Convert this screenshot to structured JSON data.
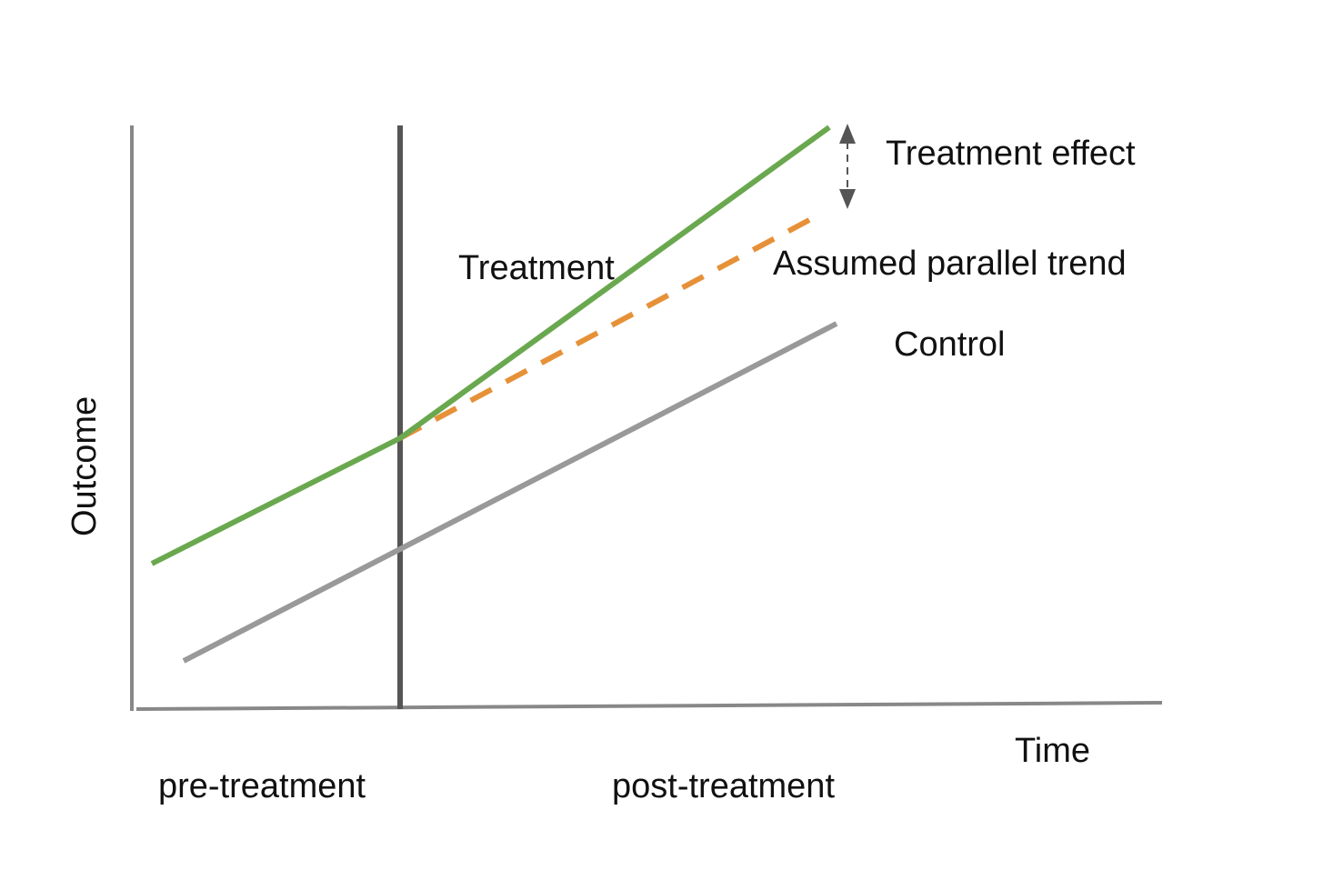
{
  "axes": {
    "y_label": "Outcome",
    "x_label": "Time"
  },
  "periods": {
    "pre": "pre-treatment",
    "post": "post-treatment"
  },
  "lines": {
    "treatment": {
      "label": "Treatment",
      "color": "#6aa84f"
    },
    "parallel_trend": {
      "label": "Assumed parallel trend",
      "color": "#e69138",
      "style": "dashed"
    },
    "control": {
      "label": "Control",
      "color": "#999999"
    },
    "treatment_time": {
      "color": "#555555"
    }
  },
  "annotations": {
    "effect": {
      "label": "Treatment effect",
      "icon": "double-arrow-vertical",
      "color": "#555555"
    }
  }
}
